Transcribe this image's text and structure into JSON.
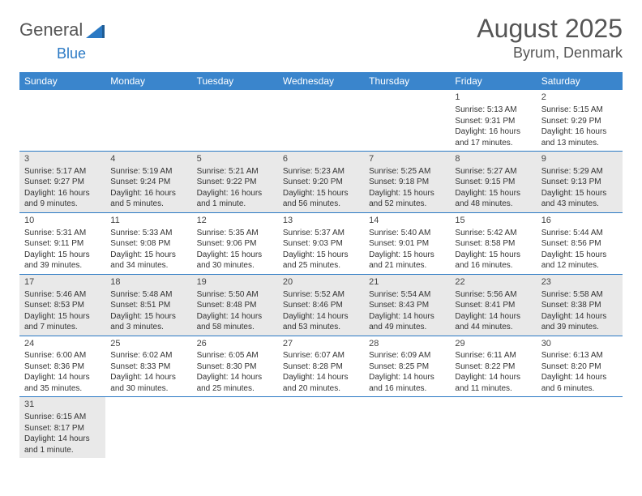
{
  "header": {
    "logo_part1": "General",
    "logo_part2": "Blue",
    "month_title": "August 2025",
    "location": "Byrum, Denmark"
  },
  "day_headers": [
    "Sunday",
    "Monday",
    "Tuesday",
    "Wednesday",
    "Thursday",
    "Friday",
    "Saturday"
  ],
  "colors": {
    "header_bg": "#3a85cc",
    "row_border": "#2a79c4",
    "shaded_row": "#e9e9e9"
  },
  "weeks": [
    {
      "shaded": false,
      "days": [
        null,
        null,
        null,
        null,
        null,
        {
          "num": "1",
          "sunrise": "Sunrise: 5:13 AM",
          "sunset": "Sunset: 9:31 PM",
          "daylight": "Daylight: 16 hours and 17 minutes."
        },
        {
          "num": "2",
          "sunrise": "Sunrise: 5:15 AM",
          "sunset": "Sunset: 9:29 PM",
          "daylight": "Daylight: 16 hours and 13 minutes."
        }
      ]
    },
    {
      "shaded": true,
      "days": [
        {
          "num": "3",
          "sunrise": "Sunrise: 5:17 AM",
          "sunset": "Sunset: 9:27 PM",
          "daylight": "Daylight: 16 hours and 9 minutes."
        },
        {
          "num": "4",
          "sunrise": "Sunrise: 5:19 AM",
          "sunset": "Sunset: 9:24 PM",
          "daylight": "Daylight: 16 hours and 5 minutes."
        },
        {
          "num": "5",
          "sunrise": "Sunrise: 5:21 AM",
          "sunset": "Sunset: 9:22 PM",
          "daylight": "Daylight: 16 hours and 1 minute."
        },
        {
          "num": "6",
          "sunrise": "Sunrise: 5:23 AM",
          "sunset": "Sunset: 9:20 PM",
          "daylight": "Daylight: 15 hours and 56 minutes."
        },
        {
          "num": "7",
          "sunrise": "Sunrise: 5:25 AM",
          "sunset": "Sunset: 9:18 PM",
          "daylight": "Daylight: 15 hours and 52 minutes."
        },
        {
          "num": "8",
          "sunrise": "Sunrise: 5:27 AM",
          "sunset": "Sunset: 9:15 PM",
          "daylight": "Daylight: 15 hours and 48 minutes."
        },
        {
          "num": "9",
          "sunrise": "Sunrise: 5:29 AM",
          "sunset": "Sunset: 9:13 PM",
          "daylight": "Daylight: 15 hours and 43 minutes."
        }
      ]
    },
    {
      "shaded": false,
      "days": [
        {
          "num": "10",
          "sunrise": "Sunrise: 5:31 AM",
          "sunset": "Sunset: 9:11 PM",
          "daylight": "Daylight: 15 hours and 39 minutes."
        },
        {
          "num": "11",
          "sunrise": "Sunrise: 5:33 AM",
          "sunset": "Sunset: 9:08 PM",
          "daylight": "Daylight: 15 hours and 34 minutes."
        },
        {
          "num": "12",
          "sunrise": "Sunrise: 5:35 AM",
          "sunset": "Sunset: 9:06 PM",
          "daylight": "Daylight: 15 hours and 30 minutes."
        },
        {
          "num": "13",
          "sunrise": "Sunrise: 5:37 AM",
          "sunset": "Sunset: 9:03 PM",
          "daylight": "Daylight: 15 hours and 25 minutes."
        },
        {
          "num": "14",
          "sunrise": "Sunrise: 5:40 AM",
          "sunset": "Sunset: 9:01 PM",
          "daylight": "Daylight: 15 hours and 21 minutes."
        },
        {
          "num": "15",
          "sunrise": "Sunrise: 5:42 AM",
          "sunset": "Sunset: 8:58 PM",
          "daylight": "Daylight: 15 hours and 16 minutes."
        },
        {
          "num": "16",
          "sunrise": "Sunrise: 5:44 AM",
          "sunset": "Sunset: 8:56 PM",
          "daylight": "Daylight: 15 hours and 12 minutes."
        }
      ]
    },
    {
      "shaded": true,
      "days": [
        {
          "num": "17",
          "sunrise": "Sunrise: 5:46 AM",
          "sunset": "Sunset: 8:53 PM",
          "daylight": "Daylight: 15 hours and 7 minutes."
        },
        {
          "num": "18",
          "sunrise": "Sunrise: 5:48 AM",
          "sunset": "Sunset: 8:51 PM",
          "daylight": "Daylight: 15 hours and 3 minutes."
        },
        {
          "num": "19",
          "sunrise": "Sunrise: 5:50 AM",
          "sunset": "Sunset: 8:48 PM",
          "daylight": "Daylight: 14 hours and 58 minutes."
        },
        {
          "num": "20",
          "sunrise": "Sunrise: 5:52 AM",
          "sunset": "Sunset: 8:46 PM",
          "daylight": "Daylight: 14 hours and 53 minutes."
        },
        {
          "num": "21",
          "sunrise": "Sunrise: 5:54 AM",
          "sunset": "Sunset: 8:43 PM",
          "daylight": "Daylight: 14 hours and 49 minutes."
        },
        {
          "num": "22",
          "sunrise": "Sunrise: 5:56 AM",
          "sunset": "Sunset: 8:41 PM",
          "daylight": "Daylight: 14 hours and 44 minutes."
        },
        {
          "num": "23",
          "sunrise": "Sunrise: 5:58 AM",
          "sunset": "Sunset: 8:38 PM",
          "daylight": "Daylight: 14 hours and 39 minutes."
        }
      ]
    },
    {
      "shaded": false,
      "days": [
        {
          "num": "24",
          "sunrise": "Sunrise: 6:00 AM",
          "sunset": "Sunset: 8:36 PM",
          "daylight": "Daylight: 14 hours and 35 minutes."
        },
        {
          "num": "25",
          "sunrise": "Sunrise: 6:02 AM",
          "sunset": "Sunset: 8:33 PM",
          "daylight": "Daylight: 14 hours and 30 minutes."
        },
        {
          "num": "26",
          "sunrise": "Sunrise: 6:05 AM",
          "sunset": "Sunset: 8:30 PM",
          "daylight": "Daylight: 14 hours and 25 minutes."
        },
        {
          "num": "27",
          "sunrise": "Sunrise: 6:07 AM",
          "sunset": "Sunset: 8:28 PM",
          "daylight": "Daylight: 14 hours and 20 minutes."
        },
        {
          "num": "28",
          "sunrise": "Sunrise: 6:09 AM",
          "sunset": "Sunset: 8:25 PM",
          "daylight": "Daylight: 14 hours and 16 minutes."
        },
        {
          "num": "29",
          "sunrise": "Sunrise: 6:11 AM",
          "sunset": "Sunset: 8:22 PM",
          "daylight": "Daylight: 14 hours and 11 minutes."
        },
        {
          "num": "30",
          "sunrise": "Sunrise: 6:13 AM",
          "sunset": "Sunset: 8:20 PM",
          "daylight": "Daylight: 14 hours and 6 minutes."
        }
      ]
    },
    {
      "shaded": true,
      "days": [
        {
          "num": "31",
          "sunrise": "Sunrise: 6:15 AM",
          "sunset": "Sunset: 8:17 PM",
          "daylight": "Daylight: 14 hours and 1 minute."
        },
        null,
        null,
        null,
        null,
        null,
        null
      ]
    }
  ]
}
